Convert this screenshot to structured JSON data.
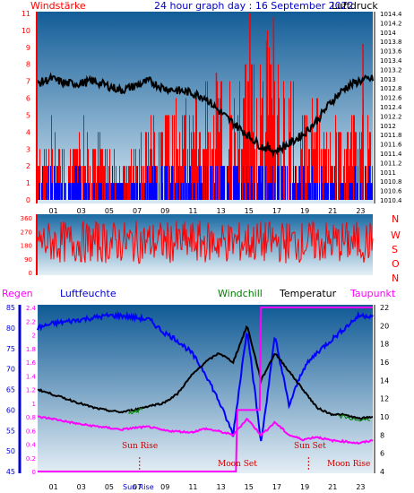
{
  "header": {
    "windstarke": "Windstärke",
    "title": "24 hour graph day : 16 September 2022",
    "luftdruck": "Luftdruck"
  },
  "colors": {
    "panel_top": "#1c6fa4",
    "panel_bottom": "#e0ecf4",
    "wind_red": "#ff0000",
    "wind_blue": "#0000ff",
    "pressure": "#000000",
    "humidity": "#0000ff",
    "temperature": "#000000",
    "windchill": "#008000",
    "dewpoint": "#ff00ff",
    "rain": "#ff00ff",
    "axis_left_top": "#ff0000",
    "axis_left_bottom": "#0000cc"
  },
  "direction_labels": [
    "N",
    "W",
    "S",
    "O",
    "N"
  ],
  "legend3": {
    "regen": "Regen",
    "luftfeuchte": "Luftfeuchte",
    "windchill": "Windchill",
    "temperatur": "Temperatur",
    "taupunkt": "Taupunkt"
  },
  "events": {
    "sun_rise": "Sun Rise",
    "sun_set": "Sun Set",
    "moon_set": "Moon Set",
    "moon_rise": "Moon Rise",
    "sunrise_axis": "Sun Rise"
  },
  "chart_data": [
    {
      "type": "bar",
      "title": "24 hour graph day : 16 September 2022",
      "ylabel": "Windstärke",
      "y2label": "Luftdruck",
      "x_ticks": [
        "01",
        "03",
        "05",
        "07",
        "09",
        "11",
        "13",
        "15",
        "17",
        "19",
        "21",
        "23"
      ],
      "ylim": [
        0,
        11
      ],
      "y_ticks": [
        "0",
        "1",
        "2",
        "3",
        "4",
        "5",
        "6",
        "7",
        "8",
        "9",
        "10",
        "11"
      ],
      "y2lim": [
        1010.4,
        1014.4
      ],
      "y2_ticks": [
        "1010.4",
        "1010.6",
        "1010.8",
        "1011",
        "1011.2",
        "1011.4",
        "1011.6",
        "1011.8",
        "1012",
        "1012.2",
        "1012.4",
        "1012.6",
        "1012.8",
        "1013",
        "1013.2",
        "1013.4",
        "1013.6",
        "1013.8",
        "1014",
        "1014.2",
        "1014.4"
      ],
      "series": [
        {
          "values_hours": [
            0,
            1,
            2,
            3,
            4,
            5,
            6,
            7,
            8,
            9,
            10,
            11,
            12,
            13,
            14,
            15,
            16,
            17,
            18,
            19,
            20,
            21,
            22,
            23,
            24
          ],
          "wind_avg": [
            1.5,
            1.5,
            1.2,
            1.4,
            1.3,
            1.2,
            1.0,
            1.2,
            1.4,
            1.8,
            1.5,
            1.7,
            2.0,
            2.0,
            2.2,
            2.3,
            2.2,
            2.1,
            1.6,
            1.4,
            1.5,
            1.3,
            1.4,
            1.6,
            1.6
          ],
          "wind_gust": [
            3,
            4,
            3,
            4,
            3,
            3,
            2,
            3,
            4,
            5,
            5,
            5,
            6,
            6,
            6,
            7,
            8,
            8,
            6,
            5,
            5,
            4,
            4,
            5,
            5
          ]
        },
        {
          "name": "Luftdruck",
          "values_hours": [
            0,
            1,
            2,
            3,
            4,
            5,
            6,
            7,
            8,
            9,
            10,
            11,
            12,
            13,
            14,
            15,
            16,
            17,
            18,
            19,
            20,
            21,
            22,
            23,
            24
          ],
          "values": [
            1012.9,
            1013.0,
            1012.9,
            1012.9,
            1012.95,
            1012.85,
            1012.75,
            1012.85,
            1012.95,
            1012.8,
            1012.75,
            1012.7,
            1012.6,
            1012.3,
            1012.05,
            1011.8,
            1011.55,
            1011.45,
            1011.6,
            1011.8,
            1012.1,
            1012.5,
            1012.8,
            1012.95,
            1013.0
          ]
        }
      ]
    },
    {
      "type": "bar",
      "ylabel": "wind direction (degrees)",
      "ylim": [
        0,
        360
      ],
      "y_ticks": [
        "0",
        "90",
        "180",
        "270",
        "360"
      ],
      "series": [
        {
          "name": "direction",
          "values_hours": [
            0,
            24
          ],
          "values": [
            0,
            360
          ]
        }
      ]
    },
    {
      "type": "line",
      "x_ticks": [
        "01",
        "03",
        "05",
        "07",
        "09",
        "11",
        "13",
        "15",
        "17",
        "19",
        "21",
        "23"
      ],
      "rain_ylim": [
        0,
        2.4
      ],
      "rain_ticks": [
        "0",
        "0.2",
        "0.4",
        "0.6",
        "0.8",
        "1",
        "1.2",
        "1.4",
        "1.6",
        "1.8",
        "2",
        "2.2",
        "2.4"
      ],
      "humidity_ylim": [
        45,
        85
      ],
      "humidity_ticks": [
        "45",
        "50",
        "55",
        "60",
        "65",
        "70",
        "75",
        "80",
        "85"
      ],
      "temp_ylim": [
        4,
        22
      ],
      "temp_ticks": [
        "4",
        "6",
        "8",
        "10",
        "12",
        "14",
        "16",
        "18",
        "20",
        "22"
      ],
      "series": [
        {
          "name": "Luftfeuchte",
          "values_hours": [
            0,
            1,
            2,
            3,
            4,
            5,
            6,
            7,
            8,
            9,
            10,
            11,
            12,
            13,
            14,
            15,
            16,
            17,
            18,
            19,
            20,
            21,
            22,
            23,
            24
          ],
          "values": [
            80,
            81,
            81.5,
            82,
            82.5,
            83,
            83,
            82.5,
            82,
            79,
            77,
            74,
            69,
            62,
            54,
            80,
            52,
            78,
            61,
            70,
            74,
            77,
            80,
            83,
            83
          ]
        },
        {
          "name": "Temperatur",
          "values_hours": [
            0,
            1,
            2,
            3,
            4,
            5,
            6,
            7,
            8,
            9,
            10,
            11,
            12,
            13,
            14,
            15,
            16,
            17,
            18,
            19,
            20,
            21,
            22,
            23,
            24
          ],
          "values": [
            13,
            12.5,
            12,
            11.5,
            11,
            10.7,
            10.5,
            10.8,
            11.2,
            11.5,
            12.5,
            14.5,
            16,
            17,
            16,
            20,
            14,
            17,
            15,
            13,
            11,
            10.3,
            10.2,
            9.8,
            10
          ]
        },
        {
          "name": "Taupunkt",
          "values_hours": [
            0,
            1,
            2,
            3,
            4,
            5,
            6,
            7,
            8,
            9,
            10,
            11,
            12,
            13,
            14,
            15,
            16,
            17,
            18,
            19,
            20,
            21,
            22,
            23,
            24
          ],
          "values": [
            10,
            9.8,
            9.5,
            9.2,
            9,
            8.8,
            8.6,
            8.8,
            8.9,
            8.5,
            8.4,
            8.3,
            8.7,
            8.4,
            8.0,
            9.8,
            8.0,
            9.4,
            8.0,
            7.5,
            7.8,
            7.4,
            7.3,
            7.1,
            7.4
          ]
        },
        {
          "name": "Regen",
          "values_hours": [
            0,
            14.2,
            14.3,
            15.9,
            16.0,
            24
          ],
          "values": [
            0,
            0,
            0.9,
            0.9,
            2.4,
            2.4
          ]
        }
      ]
    }
  ]
}
